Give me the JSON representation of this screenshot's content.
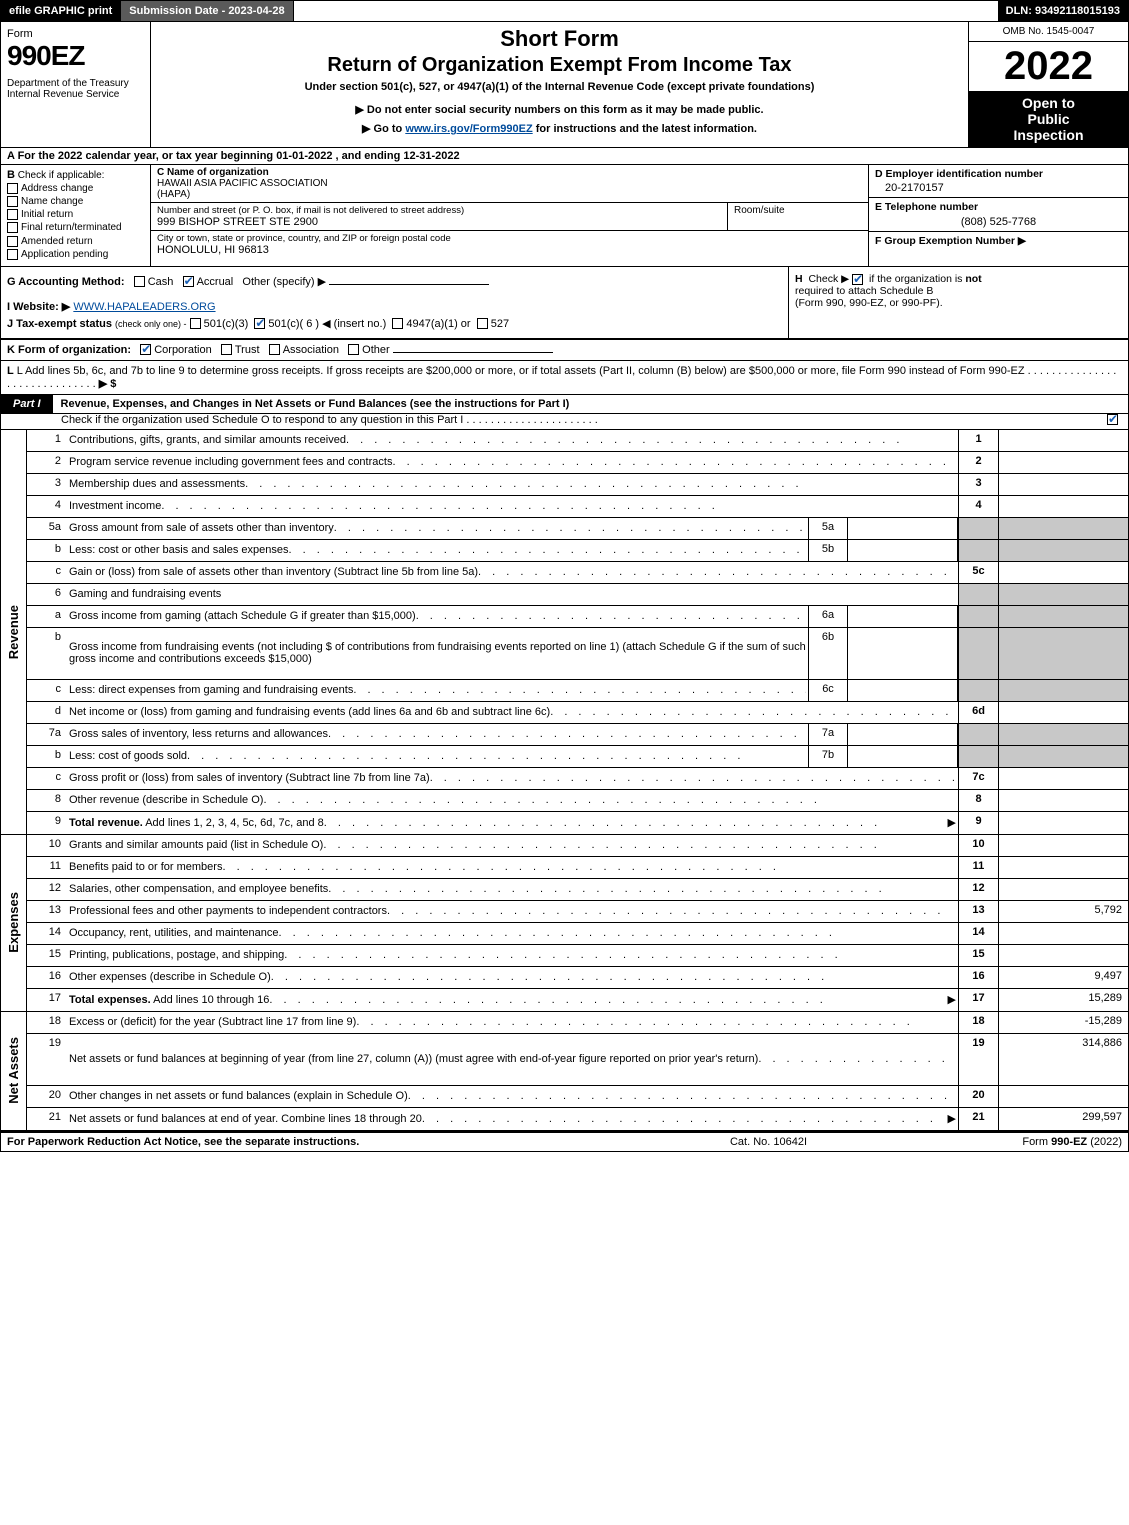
{
  "topbar": {
    "efile": "efile GRAPHIC print",
    "subdate": "Submission Date - 2023-04-28",
    "dln": "DLN: 93492118015193"
  },
  "header": {
    "form": "Form",
    "formno": "990EZ",
    "dept": "Department of the Treasury\nInternal Revenue Service",
    "short": "Short Form",
    "title": "Return of Organization Exempt From Income Tax",
    "sub": "Under section 501(c), 527, or 4947(a)(1) of the Internal Revenue Code (except private foundations)",
    "donot": "▶ Do not enter social security numbers on this form as it may be made public.",
    "goto_pre": "▶ Go to ",
    "goto_link": "www.irs.gov/Form990EZ",
    "goto_post": " for instructions and the latest information.",
    "omb": "OMB No. 1545-0047",
    "year": "2022",
    "inspect1": "Open to",
    "inspect2": "Public",
    "inspect3": "Inspection"
  },
  "A": "A  For the 2022 calendar year, or tax year beginning 01-01-2022 , and ending 12-31-2022",
  "B": {
    "hdr": "B",
    "label": "Check if applicable:",
    "opts": [
      "Address change",
      "Name change",
      "Initial return",
      "Final return/terminated",
      "Amended return",
      "Application pending"
    ]
  },
  "C": {
    "label": "C Name of organization",
    "name1": "HAWAII ASIA PACIFIC ASSOCIATION",
    "name2": "(HAPA)",
    "street_label": "Number and street (or P. O. box, if mail is not delivered to street address)",
    "street": "999 BISHOP STREET STE 2900",
    "room_label": "Room/suite",
    "city_label": "City or town, state or province, country, and ZIP or foreign postal code",
    "city": "HONOLULU, HI  96813"
  },
  "D": {
    "label": "D Employer identification number",
    "val": "20-2170157"
  },
  "E": {
    "label": "E Telephone number",
    "val": "(808) 525-7768"
  },
  "F": {
    "label": "F Group Exemption Number  ▶"
  },
  "G": {
    "label": "G Accounting Method:",
    "cash": "Cash",
    "accrual": "Accrual",
    "other": "Other (specify) ▶"
  },
  "H": {
    "text1": "Check ▶",
    "text2": "if the organization is ",
    "not": "not",
    "text3": " required to attach Schedule B",
    "text4": "(Form 990, 990-EZ, or 990-PF)."
  },
  "I": {
    "label": "I Website: ▶",
    "val": "WWW.HAPALEADERS.ORG"
  },
  "J": {
    "label": "J Tax-exempt status",
    "sub": "(check only one) -",
    "a": "501(c)(3)",
    "b": "501(c)( 6 ) ◀ (insert no.)",
    "c": "4947(a)(1) or",
    "d": "527"
  },
  "K": {
    "label": "K Form of organization:",
    "a": "Corporation",
    "b": "Trust",
    "c": "Association",
    "d": "Other"
  },
  "L": {
    "text": "L Add lines 5b, 6c, and 7b to line 9 to determine gross receipts. If gross receipts are $200,000 or more, or if total assets (Part II, column (B) below) are $500,000 or more, file Form 990 instead of Form 990-EZ",
    "arrow": "▶ $"
  },
  "part1": {
    "badge": "Part I",
    "title": "Revenue, Expenses, and Changes in Net Assets or Fund Balances (see the instructions for Part I)",
    "sub": "Check if the organization used Schedule O to respond to any question in this Part I"
  },
  "revenue_label": "Revenue",
  "lines_rev": [
    {
      "no": "1",
      "desc": "Contributions, gifts, grants, and similar amounts received",
      "ref": "1",
      "val": ""
    },
    {
      "no": "2",
      "desc": "Program service revenue including government fees and contracts",
      "ref": "2",
      "val": ""
    },
    {
      "no": "3",
      "desc": "Membership dues and assessments",
      "ref": "3",
      "val": ""
    },
    {
      "no": "4",
      "desc": "Investment income",
      "ref": "4",
      "val": ""
    },
    {
      "no": "5a",
      "desc": "Gross amount from sale of assets other than inventory",
      "sub": "5a",
      "subval": "",
      "shade": true
    },
    {
      "no": "b",
      "desc": "Less: cost or other basis and sales expenses",
      "sub": "5b",
      "subval": "",
      "shade": true
    },
    {
      "no": "c",
      "desc": "Gain or (loss) from sale of assets other than inventory (Subtract line 5b from line 5a)",
      "ref": "5c",
      "val": ""
    },
    {
      "no": "6",
      "desc": "Gaming and fundraising events",
      "shade": true,
      "nobox": true
    },
    {
      "no": "a",
      "desc": "Gross income from gaming (attach Schedule G if greater than $15,000)",
      "sub": "6a",
      "subval": "",
      "shade": true
    },
    {
      "no": "b",
      "desc": "Gross income from fundraising events (not including $                    of contributions from fundraising events reported on line 1) (attach Schedule G if the sum of such gross income and contributions exceeds $15,000)",
      "sub": "6b",
      "subval": "",
      "shade": true,
      "tall": true
    },
    {
      "no": "c",
      "desc": "Less: direct expenses from gaming and fundraising events",
      "sub": "6c",
      "subval": "",
      "shade": true
    },
    {
      "no": "d",
      "desc": "Net income or (loss) from gaming and fundraising events (add lines 6a and 6b and subtract line 6c)",
      "ref": "6d",
      "val": ""
    },
    {
      "no": "7a",
      "desc": "Gross sales of inventory, less returns and allowances",
      "sub": "7a",
      "subval": "",
      "shade": true
    },
    {
      "no": "b",
      "desc": "Less: cost of goods sold",
      "sub": "7b",
      "subval": "",
      "shade": true
    },
    {
      "no": "c",
      "desc": "Gross profit or (loss) from sales of inventory (Subtract line 7b from line 7a)",
      "ref": "7c",
      "val": ""
    },
    {
      "no": "8",
      "desc": "Other revenue (describe in Schedule O)",
      "ref": "8",
      "val": ""
    },
    {
      "no": "9",
      "desc": "Total revenue. Add lines 1, 2, 3, 4, 5c, 6d, 7c, and 8",
      "ref": "9",
      "val": "",
      "arrow": true,
      "bold": true
    }
  ],
  "expenses_label": "Expenses",
  "lines_exp": [
    {
      "no": "10",
      "desc": "Grants and similar amounts paid (list in Schedule O)",
      "ref": "10",
      "val": ""
    },
    {
      "no": "11",
      "desc": "Benefits paid to or for members",
      "ref": "11",
      "val": ""
    },
    {
      "no": "12",
      "desc": "Salaries, other compensation, and employee benefits",
      "ref": "12",
      "val": ""
    },
    {
      "no": "13",
      "desc": "Professional fees and other payments to independent contractors",
      "ref": "13",
      "val": "5,792"
    },
    {
      "no": "14",
      "desc": "Occupancy, rent, utilities, and maintenance",
      "ref": "14",
      "val": ""
    },
    {
      "no": "15",
      "desc": "Printing, publications, postage, and shipping",
      "ref": "15",
      "val": ""
    },
    {
      "no": "16",
      "desc": "Other expenses (describe in Schedule O)",
      "ref": "16",
      "val": "9,497"
    },
    {
      "no": "17",
      "desc": "Total expenses. Add lines 10 through 16",
      "ref": "17",
      "val": "15,289",
      "arrow": true,
      "bold": true
    }
  ],
  "netassets_label": "Net Assets",
  "lines_net": [
    {
      "no": "18",
      "desc": "Excess or (deficit) for the year (Subtract line 17 from line 9)",
      "ref": "18",
      "val": "-15,289"
    },
    {
      "no": "19",
      "desc": "Net assets or fund balances at beginning of year (from line 27, column (A)) (must agree with end-of-year figure reported on prior year's return)",
      "ref": "19",
      "val": "314,886",
      "tall": true
    },
    {
      "no": "20",
      "desc": "Other changes in net assets or fund balances (explain in Schedule O)",
      "ref": "20",
      "val": ""
    },
    {
      "no": "21",
      "desc": "Net assets or fund balances at end of year. Combine lines 18 through 20",
      "ref": "21",
      "val": "299,597",
      "arrow": true
    }
  ],
  "footer": {
    "l": "For Paperwork Reduction Act Notice, see the separate instructions.",
    "m": "Cat. No. 10642I",
    "r": "Form 990-EZ (2022)"
  },
  "colors": {
    "black": "#000000",
    "shade": "#c8c8c8",
    "link": "#004b9b",
    "check": "#1a5fb4"
  }
}
